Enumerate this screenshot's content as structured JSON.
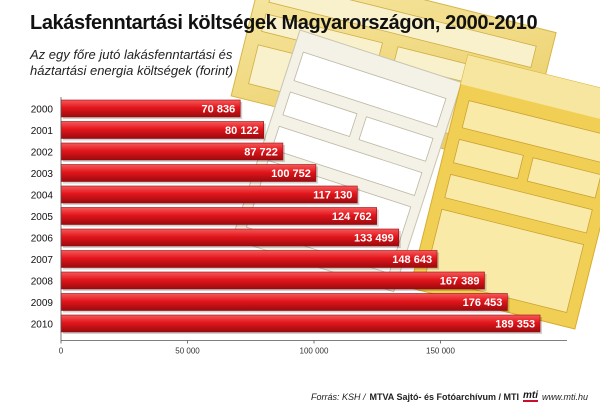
{
  "header": {
    "title": "Lakásfenntartási költségek Magyarországon, 2000-2010",
    "subtitle_lines": [
      "Az egy főre jutó lakásfenntartási és",
      "háztartási energia költségek (forint)"
    ]
  },
  "footer": {
    "source": "Forrás: KSH /",
    "agency": "MTVA Sajtó- és Fotóarchívum / MTI",
    "logo": "mti",
    "site": "www.mti.hu"
  },
  "colors": {
    "bar": "#e3161c",
    "bar_highlight": "#f55a5a",
    "bar_shadow": "#9a0a0e",
    "background_paper": "#f2d978",
    "axis": "#555555"
  },
  "chart_data": {
    "type": "bar",
    "orientation": "horizontal",
    "categories": [
      "2000",
      "2001",
      "2002",
      "2003",
      "2004",
      "2005",
      "2006",
      "2007",
      "2008",
      "2009",
      "2010"
    ],
    "values": [
      70836,
      80122,
      87722,
      100752,
      117130,
      124762,
      133499,
      148643,
      167389,
      176453,
      189353
    ],
    "value_labels": [
      "70 836",
      "80 122",
      "87 722",
      "100 752",
      "117 130",
      "124 762",
      "133 499",
      "148 643",
      "167 389",
      "176 453",
      "189 353"
    ],
    "xlim": [
      0,
      200000
    ],
    "x_ticks": [
      0,
      50000,
      100000,
      150000
    ],
    "x_tick_labels": [
      "0",
      "50 000",
      "100 000",
      "150 000"
    ],
    "grid": false,
    "legend": "none"
  }
}
